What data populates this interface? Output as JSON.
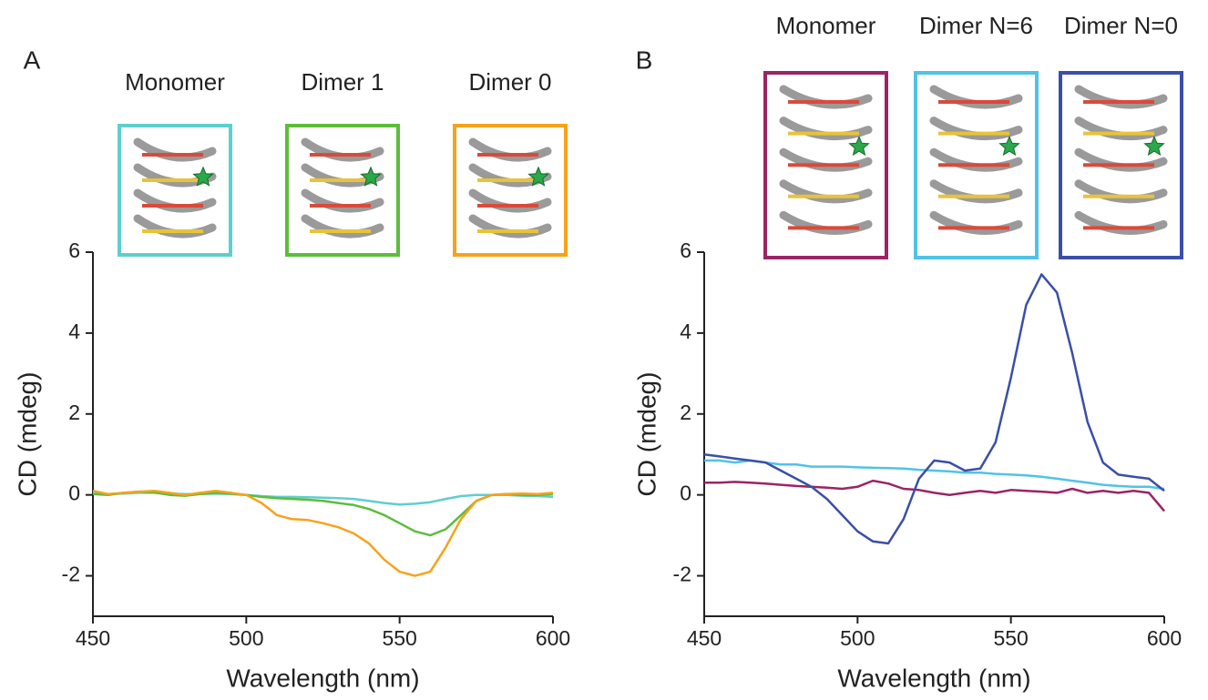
{
  "chart_data": [
    {
      "type": "line",
      "panel_label": "A",
      "xlabel": "Wavelength (nm)",
      "ylabel": "CD (mdeg)",
      "xlim": [
        450,
        600
      ],
      "xticks": [
        450,
        500,
        550,
        600
      ],
      "ylim": [
        -3,
        6
      ],
      "yticks": [
        -2,
        0,
        2,
        4,
        6
      ],
      "x": [
        450,
        455,
        460,
        465,
        470,
        475,
        480,
        485,
        490,
        495,
        500,
        505,
        510,
        515,
        520,
        525,
        530,
        535,
        540,
        545,
        550,
        555,
        560,
        565,
        570,
        575,
        580,
        585,
        590,
        595,
        600
      ],
      "series": [
        {
          "name": "Monomer",
          "color": "#5ecfcf",
          "values": [
            0.05,
            0.02,
            0.03,
            0.05,
            0.05,
            0.03,
            0.02,
            0.02,
            0.03,
            0.02,
            0,
            -0.03,
            -0.05,
            -0.05,
            -0.06,
            -0.07,
            -0.08,
            -0.1,
            -0.15,
            -0.2,
            -0.24,
            -0.22,
            -0.18,
            -0.1,
            -0.03,
            0,
            0,
            0,
            -0.02,
            -0.03,
            -0.05
          ]
        },
        {
          "name": "Dimer 1",
          "color": "#5cbd3c",
          "values": [
            0.02,
            0,
            0.05,
            0.08,
            0.06,
            0,
            -0.02,
            0.02,
            0.05,
            0.03,
            0,
            -0.05,
            -0.08,
            -0.1,
            -0.12,
            -0.15,
            -0.2,
            -0.25,
            -0.35,
            -0.5,
            -0.7,
            -0.9,
            -1.0,
            -0.85,
            -0.5,
            -0.15,
            0,
            0.02,
            0,
            0,
            0.02
          ]
        },
        {
          "name": "Dimer 0",
          "color": "#f7a21b",
          "values": [
            0.1,
            0.02,
            0.05,
            0.08,
            0.1,
            0.05,
            0,
            0.05,
            0.1,
            0.05,
            0,
            -0.2,
            -0.5,
            -0.6,
            -0.62,
            -0.7,
            -0.8,
            -0.95,
            -1.2,
            -1.6,
            -1.9,
            -2.0,
            -1.9,
            -1.3,
            -0.6,
            -0.15,
            0,
            0.02,
            0.03,
            0.02,
            0.05
          ]
        }
      ]
    },
    {
      "type": "line",
      "panel_label": "B",
      "xlabel": "Wavelength (nm)",
      "ylabel": "CD (mdeg)",
      "xlim": [
        450,
        600
      ],
      "xticks": [
        450,
        500,
        550,
        600
      ],
      "ylim": [
        -3,
        6
      ],
      "yticks": [
        -2,
        0,
        2,
        4,
        6
      ],
      "x": [
        450,
        455,
        460,
        465,
        470,
        475,
        480,
        485,
        490,
        495,
        500,
        505,
        510,
        515,
        520,
        525,
        530,
        535,
        540,
        545,
        550,
        555,
        560,
        565,
        570,
        575,
        580,
        585,
        590,
        595,
        600
      ],
      "series": [
        {
          "name": "Monomer",
          "color": "#9b2466",
          "values": [
            0.3,
            0.3,
            0.32,
            0.3,
            0.28,
            0.25,
            0.22,
            0.2,
            0.18,
            0.15,
            0.2,
            0.35,
            0.28,
            0.15,
            0.12,
            0.05,
            0,
            0.05,
            0.1,
            0.05,
            0.12,
            0.1,
            0.08,
            0.05,
            0.15,
            0.05,
            0.1,
            0.05,
            0.1,
            0.05,
            -0.4
          ]
        },
        {
          "name": "Dimer N=6",
          "color": "#4fc3e8",
          "values": [
            0.85,
            0.85,
            0.8,
            0.85,
            0.8,
            0.75,
            0.75,
            0.7,
            0.7,
            0.7,
            0.68,
            0.67,
            0.66,
            0.65,
            0.62,
            0.6,
            0.58,
            0.55,
            0.55,
            0.52,
            0.5,
            0.48,
            0.45,
            0.4,
            0.35,
            0.3,
            0.25,
            0.22,
            0.2,
            0.2,
            0.15
          ]
        },
        {
          "name": "Dimer N=0",
          "color": "#3a4fa8",
          "values": [
            1.0,
            0.95,
            0.9,
            0.85,
            0.8,
            0.6,
            0.4,
            0.2,
            -0.1,
            -0.5,
            -0.9,
            -1.15,
            -1.2,
            -0.6,
            0.4,
            0.85,
            0.8,
            0.6,
            0.65,
            1.3,
            2.9,
            4.7,
            5.45,
            5.0,
            3.5,
            1.8,
            0.8,
            0.5,
            0.45,
            0.4,
            0.1
          ]
        }
      ]
    }
  ]
}
